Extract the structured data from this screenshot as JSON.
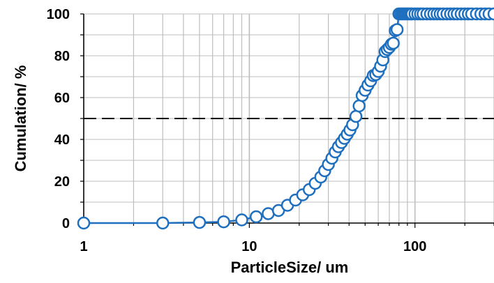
{
  "chart_data": {
    "type": "scatter",
    "xscale": "log",
    "xlim": [
      1,
      300
    ],
    "ylim": [
      0,
      100
    ],
    "xlabel": "ParticleSize/ um",
    "ylabel": "Cumulation/ %",
    "x_tick_labels": [
      "1",
      "10",
      "100"
    ],
    "y_tick_labels": [
      "0",
      "20",
      "40",
      "60",
      "80",
      "100"
    ],
    "x_ticks": [
      1,
      10,
      100
    ],
    "y_ticks": [
      0,
      20,
      40,
      60,
      80,
      100
    ],
    "grid": true,
    "legend": "none",
    "reference_line": {
      "y": 50,
      "style": "dashed"
    },
    "colors": {
      "series": "#1f6fbf",
      "marker_fill": "#ffffff",
      "grid": "#bdbdbd",
      "reference": "#000000"
    },
    "series": [
      {
        "x": [
          1,
          3,
          5,
          7,
          9,
          11,
          13,
          15,
          17,
          19,
          21,
          23,
          25,
          27,
          28.5,
          30,
          31.5,
          33,
          34.5,
          36,
          37.5,
          39,
          40.5,
          42,
          44,
          46,
          48,
          50,
          52,
          54,
          56,
          58,
          60,
          62,
          64,
          66,
          68,
          70,
          72,
          74,
          76,
          78,
          80,
          82,
          84,
          86,
          88,
          90,
          92,
          94,
          96,
          100,
          104,
          108,
          112,
          118,
          124,
          130,
          136,
          142,
          148,
          156,
          164,
          172,
          180,
          190,
          200,
          210,
          220,
          235,
          250,
          265,
          280,
          300
        ],
        "y": [
          0,
          0,
          0.3,
          0.6,
          1.5,
          3,
          4.5,
          6,
          8.5,
          11,
          13.5,
          16,
          19,
          22,
          25,
          28,
          31,
          34,
          36.5,
          38.5,
          40.5,
          42.5,
          44.5,
          47,
          51,
          56,
          61,
          63.5,
          66,
          68,
          70.5,
          71,
          72.5,
          75,
          78,
          82,
          83,
          84,
          85.5,
          86,
          92,
          92.5,
          100,
          100,
          100,
          100,
          100,
          100,
          100,
          100,
          100,
          100,
          100,
          100,
          100,
          100,
          100,
          100,
          100,
          100,
          100,
          100,
          100,
          100,
          100,
          100,
          100,
          100,
          100,
          100,
          100,
          100,
          100,
          100
        ]
      }
    ]
  }
}
